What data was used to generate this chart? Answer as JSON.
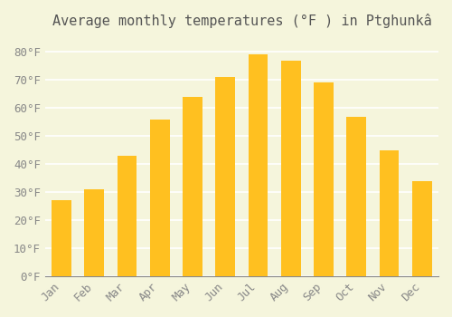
{
  "title": "Average monthly temperatures (°F ) in Ptghunkâ",
  "months": [
    "Jan",
    "Feb",
    "Mar",
    "Apr",
    "May",
    "Jun",
    "Jul",
    "Aug",
    "Sep",
    "Oct",
    "Nov",
    "Dec"
  ],
  "values": [
    27,
    31,
    43,
    56,
    64,
    71,
    79,
    77,
    69,
    57,
    45,
    34
  ],
  "bar_color_top": "#FFC020",
  "bar_color_bottom": "#FFD060",
  "ylim": [
    0,
    85
  ],
  "yticks": [
    0,
    10,
    20,
    30,
    40,
    50,
    60,
    70,
    80
  ],
  "ytick_labels": [
    "0°F",
    "10°F",
    "20°F",
    "30°F",
    "40°F",
    "50°F",
    "60°F",
    "70°F",
    "80°F"
  ],
  "background_color": "#F5F5DC",
  "grid_color": "#FFFFFF",
  "title_fontsize": 11,
  "tick_fontsize": 9,
  "font_family": "monospace"
}
